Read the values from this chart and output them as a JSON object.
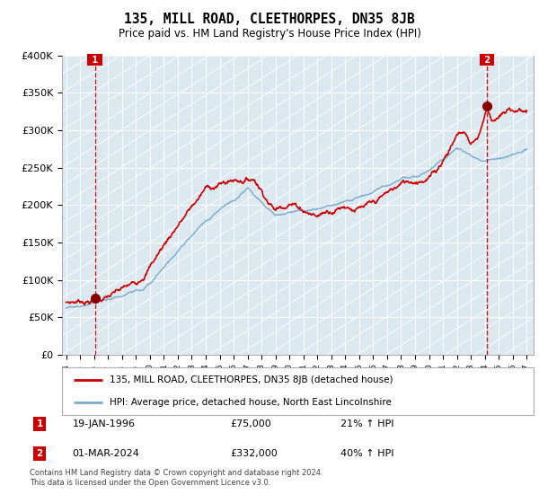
{
  "title": "135, MILL ROAD, CLEETHORPES, DN35 8JB",
  "subtitle": "Price paid vs. HM Land Registry's House Price Index (HPI)",
  "ylim": [
    0,
    400000
  ],
  "yticks": [
    0,
    50000,
    100000,
    150000,
    200000,
    250000,
    300000,
    350000,
    400000
  ],
  "ytick_labels": [
    "£0",
    "£50K",
    "£100K",
    "£150K",
    "£200K",
    "£250K",
    "£300K",
    "£350K",
    "£400K"
  ],
  "legend_line1": "135, MILL ROAD, CLEETHORPES, DN35 8JB (detached house)",
  "legend_line2": "HPI: Average price, detached house, North East Lincolnshire",
  "annotation1_date": "19-JAN-1996",
  "annotation1_price": "£75,000",
  "annotation1_hpi": "21% ↑ HPI",
  "annotation2_date": "01-MAR-2024",
  "annotation2_price": "£332,000",
  "annotation2_hpi": "40% ↑ HPI",
  "footnote1": "Contains HM Land Registry data © Crown copyright and database right 2024.",
  "footnote2": "This data is licensed under the Open Government Licence v3.0.",
  "line1_color": "#cc0000",
  "line2_color": "#7aaacc",
  "marker_color": "#880000",
  "grid_color": "#c8d8e8",
  "bg_color": "#dce8f0",
  "annotation_box_color": "#cc0000",
  "point1_x": 1996.05,
  "point1_y": 75000,
  "point2_x": 2024.17,
  "point2_y": 332000,
  "xlim_left": 1993.7,
  "xlim_right": 2027.5
}
